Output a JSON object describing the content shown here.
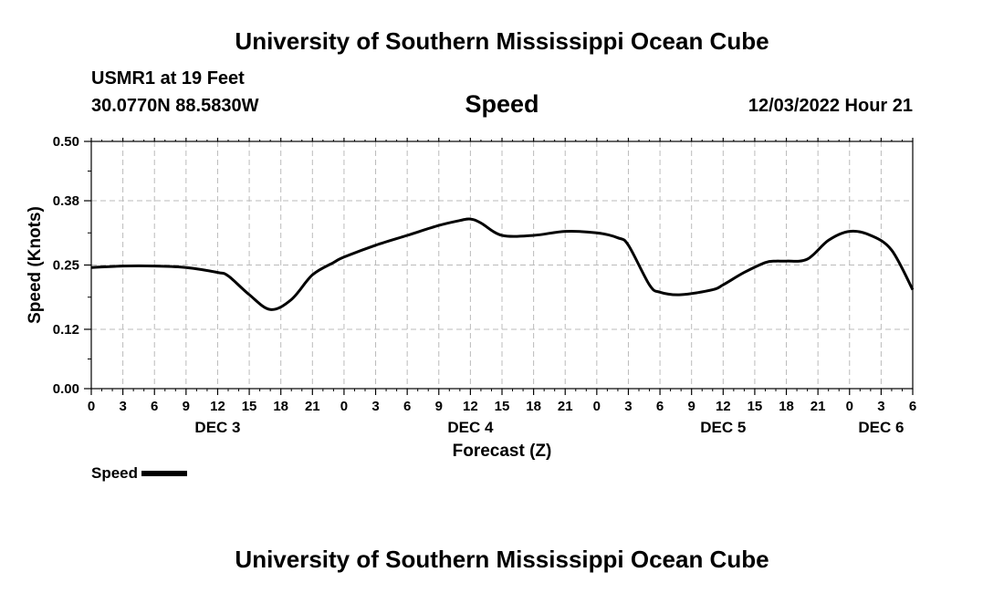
{
  "header": {
    "title": "University of Southern Mississippi Ocean Cube",
    "station": "USMR1 at 19 Feet",
    "coordinates": "30.0770N  88.5830W",
    "timestamp": "12/03/2022 Hour 21"
  },
  "footer": {
    "title": "University of Southern Mississippi Ocean Cube"
  },
  "chart_data": {
    "type": "line",
    "title": "Speed",
    "xlabel": "Forecast (Z)",
    "ylabel": "Speed (Knots)",
    "xlim": [
      0,
      78
    ],
    "ylim": [
      0,
      0.5
    ],
    "yticks": [
      0.0,
      0.12,
      0.25,
      0.38,
      0.5
    ],
    "ytick_labels": [
      "0.00",
      "0.12",
      "0.25",
      "0.38",
      "0.50"
    ],
    "xticks": [
      0,
      3,
      6,
      9,
      12,
      15,
      18,
      21,
      24,
      27,
      30,
      33,
      36,
      39,
      42,
      45,
      48,
      51,
      54,
      57,
      60,
      63,
      66,
      69,
      72,
      75,
      78
    ],
    "xtick_labels": [
      "0",
      "3",
      "6",
      "9",
      "12",
      "15",
      "18",
      "21",
      "0",
      "3",
      "6",
      "9",
      "12",
      "15",
      "18",
      "21",
      "0",
      "3",
      "6",
      "9",
      "12",
      "15",
      "18",
      "21",
      "0",
      "3",
      "6"
    ],
    "date_labels": [
      {
        "x": 12,
        "label": "DEC 3"
      },
      {
        "x": 36,
        "label": "DEC 4"
      },
      {
        "x": 60,
        "label": "DEC 5"
      },
      {
        "x": 75,
        "label": "DEC 6"
      }
    ],
    "grid": true,
    "legend": [
      {
        "name": "Speed",
        "color": "#000000",
        "position": "bottom-left"
      }
    ],
    "series": [
      {
        "name": "Speed",
        "color": "#000000",
        "x": [
          0,
          3,
          6,
          9,
          12,
          13,
          15,
          17,
          19,
          21,
          23,
          24,
          27,
          30,
          33,
          35,
          36,
          37,
          39,
          42,
          45,
          48,
          50,
          51,
          53,
          54,
          56,
          59,
          60,
          62,
          64,
          65,
          66,
          68,
          70,
          72,
          74,
          76,
          78
        ],
        "y": [
          0.245,
          0.248,
          0.248,
          0.245,
          0.235,
          0.228,
          0.19,
          0.16,
          0.18,
          0.23,
          0.255,
          0.266,
          0.29,
          0.31,
          0.33,
          0.34,
          0.343,
          0.335,
          0.31,
          0.31,
          0.318,
          0.315,
          0.305,
          0.29,
          0.21,
          0.195,
          0.19,
          0.2,
          0.21,
          0.235,
          0.255,
          0.258,
          0.258,
          0.262,
          0.3,
          0.318,
          0.31,
          0.28,
          0.2
        ]
      }
    ]
  }
}
